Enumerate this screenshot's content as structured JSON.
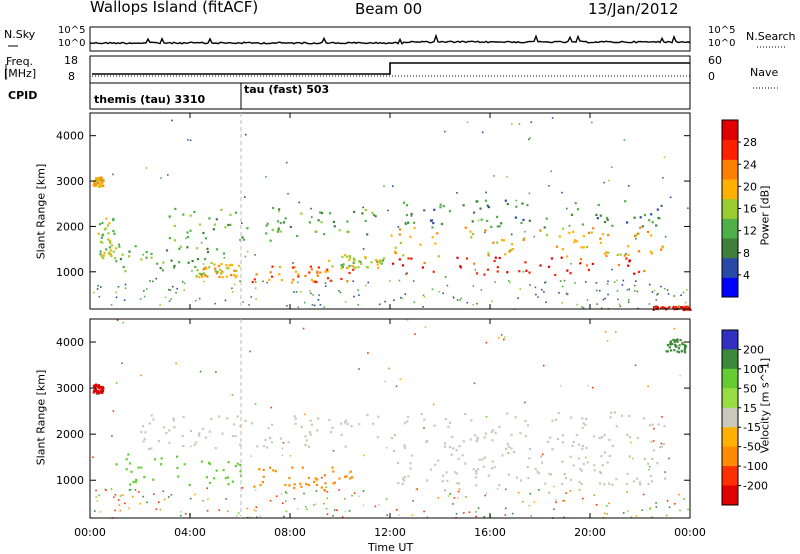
{
  "header": {
    "station": "Wallops Island (fitACF)",
    "beam": "Beam 00",
    "date": "13/Jan/2012"
  },
  "strip_nsky": {
    "left_label": "N.Sky",
    "right_label": "N.Search",
    "left_ticks": [
      "10^5",
      "10^0"
    ],
    "right_ticks": [
      "10^5",
      "10^0"
    ]
  },
  "strip_freq": {
    "left_label": "Freq.",
    "left_unit": "[MHz]",
    "left_ticks": [
      "18",
      "8"
    ],
    "right_label": "Nave",
    "right_ticks": [
      "60",
      "0"
    ],
    "cpid_label": "CPID"
  },
  "cpid_modes": [
    {
      "name": "themis (tau) 3310",
      "start_hour": 0.0
    },
    {
      "name": "tau (fast) 503",
      "start_hour": 6.0
    }
  ],
  "colors": {
    "power_scale": [
      "#0000ff",
      "#2a4aa8",
      "#3f7f3a",
      "#4fb04a",
      "#9acd32",
      "#ffb000",
      "#ff7f00",
      "#ff2000",
      "#e00000"
    ],
    "velocity_scale": [
      "#3030c0",
      "#3a8a3a",
      "#66cc33",
      "#99dd44",
      "#c8c8bc",
      "#ffb000",
      "#ff8c00",
      "#ff3000",
      "#e00000"
    ]
  },
  "chart_data": [
    {
      "type": "heatmap",
      "name": "power",
      "xlabel": "",
      "ylabel": "Slant Range [km]",
      "xlim": [
        0,
        24
      ],
      "ylim": [
        180,
        4500
      ],
      "yticks": [
        1000,
        2000,
        3000,
        4000
      ],
      "colorbar": {
        "label": "Power [dB]",
        "ticks": [
          4,
          8,
          12,
          16,
          20,
          24,
          28
        ],
        "range": [
          0,
          32
        ]
      },
      "bands": [
        {
          "t0": 1.0,
          "t1": 5.8,
          "r0": 950,
          "r1": 1600,
          "level": 12
        },
        {
          "t0": 4.2,
          "t1": 6.0,
          "r0": 900,
          "r1": 1200,
          "level": 20
        },
        {
          "t0": 6.4,
          "t1": 10.5,
          "r0": 780,
          "r1": 1150,
          "level": 24
        },
        {
          "t0": 9.5,
          "t1": 11.8,
          "r0": 1100,
          "r1": 1400,
          "level": 16
        },
        {
          "t0": 12.0,
          "t1": 22.5,
          "r0": 950,
          "r1": 1350,
          "level": 28
        },
        {
          "t0": 12.0,
          "t1": 23.0,
          "r0": 1350,
          "r1": 2000,
          "level": 20
        },
        {
          "t0": 12.5,
          "t1": 23.2,
          "r0": 2000,
          "r1": 2600,
          "level": 10
        },
        {
          "t0": 3.0,
          "t1": 11.5,
          "r0": 1700,
          "r1": 2450,
          "level": 12
        },
        {
          "t0": 0.3,
          "t1": 1.0,
          "r0": 1300,
          "r1": 2200,
          "level": 16
        },
        {
          "t0": 0.1,
          "t1": 0.5,
          "r0": 2900,
          "r1": 3100,
          "level": 20
        },
        {
          "t0": 22.5,
          "t1": 24.0,
          "r0": 180,
          "r1": 260,
          "level": 28
        }
      ]
    },
    {
      "type": "heatmap",
      "name": "velocity",
      "xlabel": "Time UT",
      "ylabel": "Slant Range [km]",
      "xlim": [
        0,
        24
      ],
      "ylim": [
        180,
        4500
      ],
      "xticks": [
        "00:00",
        "04:00",
        "08:00",
        "12:00",
        "16:00",
        "20:00",
        "00:00"
      ],
      "yticks": [
        1000,
        2000,
        3000,
        4000
      ],
      "colorbar": {
        "label": "Velocity [m s^-1]",
        "ticks": [
          200,
          100,
          50,
          15,
          -15,
          -50,
          -100,
          -200
        ]
      },
      "bands": [
        {
          "t0": 1.0,
          "t1": 6.2,
          "r0": 900,
          "r1": 1600,
          "level": 50
        },
        {
          "t0": 6.2,
          "t1": 10.5,
          "r0": 800,
          "r1": 1300,
          "level": -50
        },
        {
          "t0": 12.0,
          "t1": 23.0,
          "r0": 900,
          "r1": 2500,
          "level": 0
        },
        {
          "t0": 2.0,
          "t1": 11.5,
          "r0": 1700,
          "r1": 2450,
          "level": 0
        },
        {
          "t0": 0.1,
          "t1": 0.5,
          "r0": 2900,
          "r1": 3100,
          "level": -200
        },
        {
          "t0": 23.0,
          "t1": 23.8,
          "r0": 3800,
          "r1": 4100,
          "level": 100
        }
      ]
    }
  ]
}
